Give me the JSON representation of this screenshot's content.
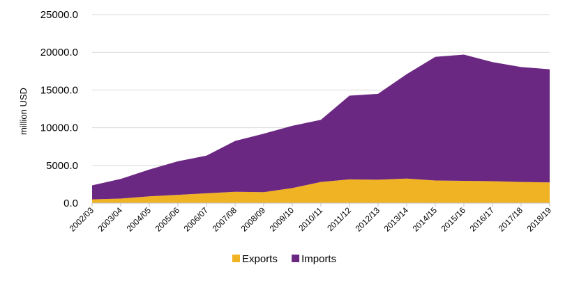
{
  "chart_data": {
    "type": "area",
    "stacked": true,
    "ylabel": "million USD",
    "ylim": [
      0,
      25000
    ],
    "yticks": [
      "0.0",
      "5000.0",
      "10000.0",
      "15000.0",
      "20000.0",
      "25000.0"
    ],
    "grid": true,
    "legend_position": "bottom",
    "categories": [
      "2002/03",
      "2003/04",
      "2004/05",
      "2005/06",
      "2006/07",
      "2007/08",
      "2008/09",
      "2009/10",
      "2010/11",
      "2011/12",
      "2012/13",
      "2013/14",
      "2014/15",
      "2015/16",
      "2016/17",
      "2017/18",
      "2018/19"
    ],
    "series": [
      {
        "name": "Exports",
        "color": "#f0b323",
        "values": [
          500,
          600,
          900,
          1100,
          1300,
          1500,
          1450,
          2000,
          2800,
          3150,
          3100,
          3250,
          3000,
          2950,
          2900,
          2800,
          2750
        ]
      },
      {
        "name": "Imports",
        "color": "#6b2883",
        "values": [
          1850,
          2600,
          3550,
          4450,
          5000,
          6750,
          7750,
          8250,
          8250,
          11100,
          11400,
          13850,
          16400,
          16750,
          15800,
          15250,
          15000
        ]
      }
    ]
  }
}
